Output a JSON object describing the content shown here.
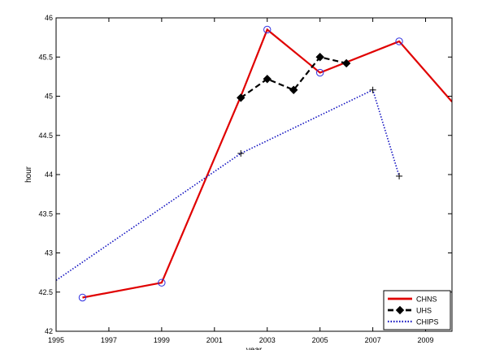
{
  "chart_data": {
    "type": "line",
    "title": "",
    "xlabel": "year",
    "ylabel": "hour",
    "xlim": [
      1995,
      2010
    ],
    "ylim": [
      42,
      46
    ],
    "xticks": [
      1995,
      1997,
      1999,
      2001,
      2003,
      2005,
      2007,
      2009
    ],
    "yticks": [
      42,
      42.5,
      43,
      43.5,
      44,
      44.5,
      45,
      45.5,
      46
    ],
    "grid": false,
    "legend_position": "bottom-right",
    "series": [
      {
        "name": "CHNS",
        "color": "#e00000",
        "style": "solid",
        "marker": "circle",
        "x": [
          1996,
          1999,
          2002,
          2003,
          2005,
          2008,
          2010
        ],
        "y": [
          42.43,
          42.62,
          45.0,
          45.85,
          45.3,
          45.7,
          44.93
        ],
        "marked": [
          true,
          true,
          false,
          true,
          true,
          true,
          false
        ]
      },
      {
        "name": "UHS",
        "color": "#000000",
        "style": "dashed",
        "marker": "diamond",
        "x": [
          2002,
          2003,
          2004,
          2005,
          2006
        ],
        "y": [
          44.98,
          45.22,
          45.08,
          45.5,
          45.42
        ],
        "marked": [
          true,
          true,
          true,
          true,
          true
        ]
      },
      {
        "name": "CHIPS",
        "color": "#1010c0",
        "style": "dotted",
        "marker": "plus",
        "x": [
          1995,
          2002,
          2007,
          2008
        ],
        "y": [
          42.65,
          44.27,
          45.08,
          43.98
        ],
        "marked": [
          false,
          true,
          true,
          true
        ]
      }
    ]
  }
}
